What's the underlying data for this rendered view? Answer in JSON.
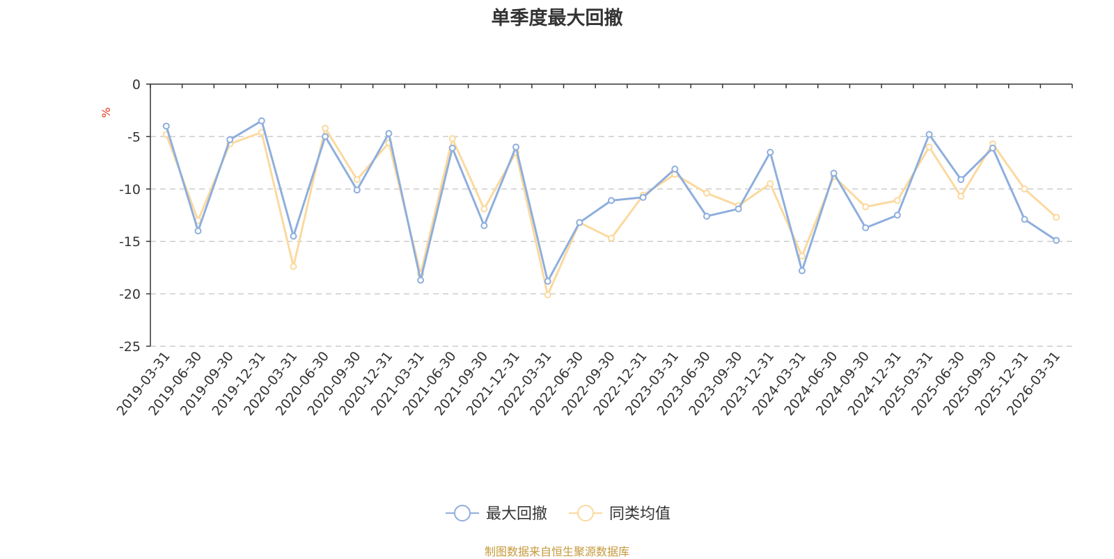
{
  "chart_data": {
    "type": "line",
    "title": "单季度最大回撤",
    "ylabel": "%",
    "xlabel": "",
    "ylim": [
      -25,
      0
    ],
    "yticks": [
      0,
      -5,
      -10,
      -15,
      -20,
      -25
    ],
    "grid": "horizontal-dashed",
    "legend_position": "bottom-center",
    "categories": [
      "2019-03-31",
      "2019-06-30",
      "2019-09-30",
      "2019-12-31",
      "2020-03-31",
      "2020-06-30",
      "2020-09-30",
      "2020-12-31",
      "2021-03-31",
      "2021-06-30",
      "2021-09-30",
      "2021-12-31",
      "2022-03-31",
      "2022-06-30",
      "2022-09-30",
      "2022-12-31",
      "2023-03-31",
      "2023-06-30",
      "2023-09-30",
      "2023-12-31",
      "2024-03-31",
      "2024-06-30",
      "2024-09-30",
      "2024-12-31",
      "2025-03-31",
      "2025-06-30",
      "2025-09-30",
      "2025-12-31",
      "2026-03-31"
    ],
    "series": [
      {
        "name": "最大回撤",
        "color": "#8eaedd",
        "values": [
          -4.0,
          -14.0,
          -5.3,
          -3.5,
          -14.5,
          -5.0,
          -10.1,
          -4.7,
          -18.7,
          -6.1,
          -13.5,
          -6.0,
          -18.8,
          -13.2,
          -11.1,
          -10.8,
          -8.1,
          -12.6,
          -11.9,
          -6.5,
          -17.8,
          -8.5,
          -13.7,
          -12.5,
          -4.8,
          -9.1,
          -6.1,
          -12.9,
          -14.9
        ]
      },
      {
        "name": "同类均值",
        "color": "#fbd99e",
        "values": [
          -4.8,
          -13.0,
          -5.7,
          -4.6,
          -17.4,
          -4.2,
          -9.1,
          -5.6,
          -18.1,
          -5.2,
          -11.9,
          -6.5,
          -20.1,
          -13.2,
          -14.7,
          -10.6,
          -8.6,
          -10.4,
          -11.6,
          -9.5,
          -16.4,
          -8.8,
          -11.7,
          -11.1,
          -6.0,
          -10.7,
          -5.7,
          -10.0,
          -12.7
        ]
      }
    ]
  },
  "footer": {
    "source": "制图数据来自恒生聚源数据库"
  }
}
